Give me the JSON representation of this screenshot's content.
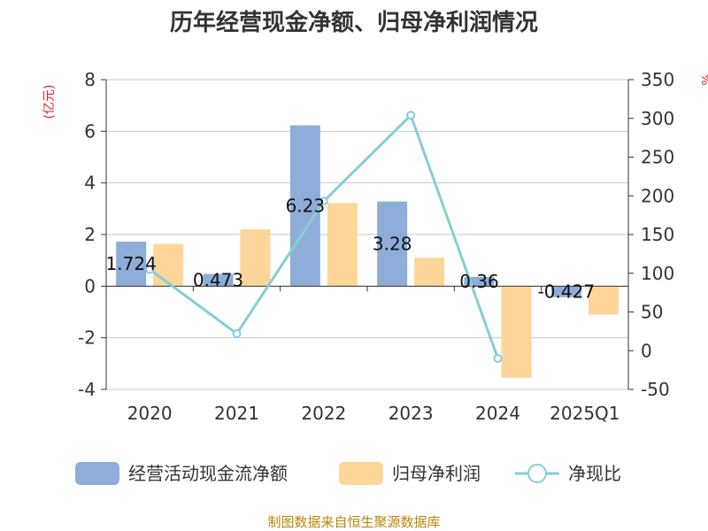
{
  "title": "历年经营现金净额、归母净利润情况",
  "source": "制图数据来自恒生聚源数据库",
  "chart_data": {
    "type": "bar",
    "title": "历年经营现金净额、归母净利润情况",
    "categories": [
      "2020",
      "2021",
      "2022",
      "2023",
      "2024",
      "2025Q1"
    ],
    "y_left": {
      "unit": "(亿元)",
      "ylim": [
        -4,
        8
      ],
      "ticks": [
        -4,
        -2,
        0,
        2,
        4,
        6,
        8
      ]
    },
    "y_right": {
      "unit": "%",
      "ylim": [
        -50,
        350
      ],
      "ticks": [
        -50,
        0,
        50,
        100,
        150,
        200,
        250,
        300,
        350
      ]
    },
    "grid": true,
    "legend_position": "bottom",
    "series": [
      {
        "name": "经营活动现金流净额",
        "kind": "bar",
        "axis": "left",
        "color": "#8eadd9",
        "values": [
          1.724,
          0.473,
          6.23,
          3.28,
          0.36,
          -0.427
        ],
        "labels": [
          "1.724",
          "0.473",
          "6.23",
          "3.28",
          "0.36",
          "-0.427"
        ]
      },
      {
        "name": "归母净利润",
        "kind": "bar",
        "axis": "left",
        "color": "#ffd699",
        "values": [
          1.64,
          2.2,
          3.22,
          1.1,
          -3.55,
          -1.1
        ]
      },
      {
        "name": "净现比",
        "kind": "line",
        "axis": "right",
        "color": "#86ced6",
        "values": [
          105,
          22,
          193,
          304,
          -10,
          null
        ]
      }
    ]
  }
}
